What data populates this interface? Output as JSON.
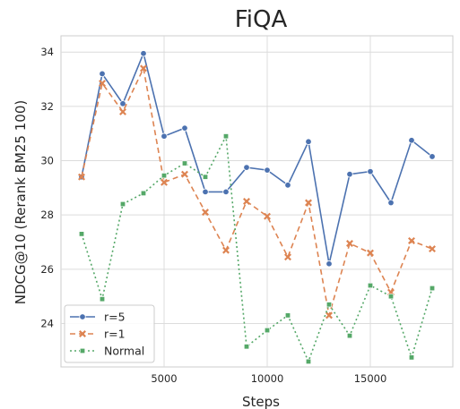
{
  "chart_data": {
    "type": "line",
    "title": "FiQA",
    "xlabel": "Steps",
    "ylabel": "NDCG@10 (Rerank BM25 100)",
    "xlim": [
      0,
      19000
    ],
    "ylim": [
      22.4,
      34.6
    ],
    "xticks": [
      5000,
      10000,
      15000
    ],
    "yticks": [
      24,
      26,
      28,
      30,
      32,
      34
    ],
    "grid": true,
    "legend_position": "lower-left",
    "x": [
      1000,
      2000,
      3000,
      4000,
      5000,
      6000,
      7000,
      8000,
      9000,
      10000,
      11000,
      12000,
      13000,
      14000,
      15000,
      16000,
      17000,
      18000
    ],
    "series": [
      {
        "name": "r=5",
        "color": "#4c72b0",
        "linestyle": "solid",
        "marker": "circle",
        "values": [
          29.4,
          33.2,
          32.1,
          33.95,
          30.9,
          31.2,
          28.85,
          28.85,
          29.75,
          29.65,
          29.1,
          30.7,
          26.2,
          29.5,
          29.6,
          28.45,
          30.75,
          30.15
        ]
      },
      {
        "name": "r=1",
        "color": "#dd8452",
        "linestyle": "dashed",
        "marker": "x",
        "values": [
          29.4,
          32.85,
          31.8,
          33.4,
          29.2,
          29.5,
          28.1,
          26.7,
          28.5,
          27.95,
          26.45,
          28.45,
          24.3,
          26.95,
          26.6,
          25.15,
          27.05,
          26.75
        ]
      },
      {
        "name": "Normal",
        "color": "#55a868",
        "linestyle": "dotted",
        "marker": "square",
        "values": [
          27.3,
          24.9,
          28.4,
          28.8,
          29.45,
          29.9,
          29.4,
          30.9,
          23.15,
          23.75,
          24.3,
          22.6,
          24.7,
          23.55,
          25.4,
          25.0,
          22.75,
          25.3
        ]
      }
    ]
  }
}
